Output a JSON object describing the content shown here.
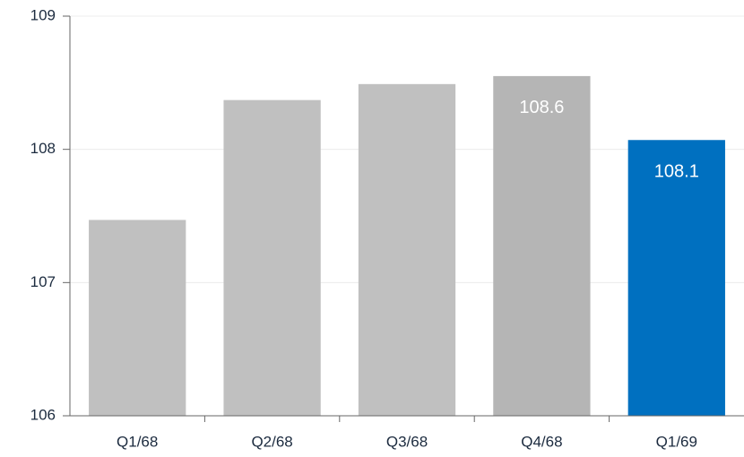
{
  "chart_data": {
    "type": "bar",
    "categories": [
      "Q1/68",
      "Q2/68",
      "Q3/68",
      "Q4/68",
      "Q1/69"
    ],
    "values": [
      107.47,
      108.37,
      108.49,
      108.55,
      108.07
    ],
    "value_labels": [
      null,
      null,
      null,
      "108.6",
      "108.1"
    ],
    "colors": [
      "#c0c0c0",
      "#c0c0c0",
      "#c0c0c0",
      "#b5b5b5",
      "#0070c0"
    ],
    "ylim": [
      106,
      109
    ],
    "yticks": [
      106,
      107,
      108,
      109
    ],
    "grid": true
  }
}
